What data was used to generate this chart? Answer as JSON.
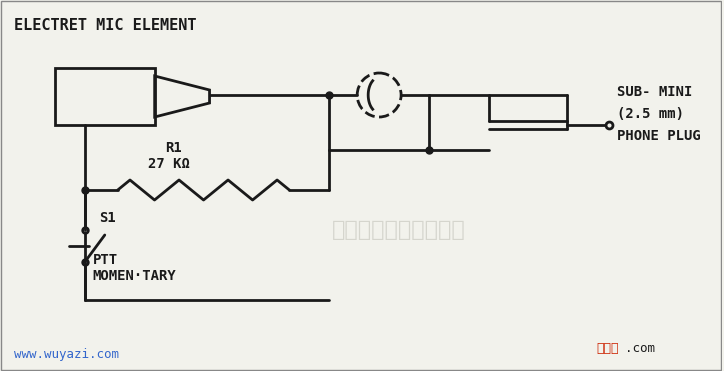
{
  "bg_color": "#f2f2ec",
  "line_color": "#1a1a1a",
  "watermark_text": "杭州将睿科技有限公司",
  "watermark_color": "#d0d0c8",
  "watermark_fontsize": 16,
  "url_text": "www.wuyazi.com",
  "url_color": "#3366cc",
  "url_fontsize": 9,
  "title_text": "ELECTRET MIC ELEMENT",
  "title_fontsize": 11,
  "label_sub_mini": "SUB- MINI",
  "label_2_5mm": "(2.5 mm)",
  "label_phone": "PHONE PLUG",
  "label_r1": "R1",
  "label_27k": "27 KΩ",
  "label_s1": "S1",
  "label_ptt": "PTT",
  "label_momentary": "MOMEN·TARY",
  "logo_red": "#cc2200",
  "logo_text1": "接线图",
  "logo_text2": ".com"
}
